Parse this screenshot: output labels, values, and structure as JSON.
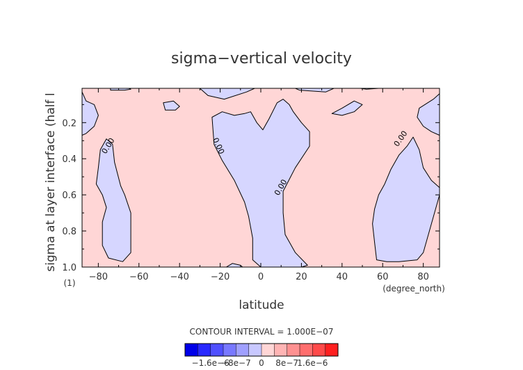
{
  "chart_data": {
    "type": "contour",
    "title": "sigma−vertical velocity",
    "xlabel": "latitude",
    "x_unit": "(degree_north)",
    "ylabel": "sigma at layer interface (half l",
    "y_unit": "(1)",
    "xlim": [
      -88,
      88
    ],
    "ylim": [
      1.0,
      0.01
    ],
    "x_ticks": [
      -80,
      -60,
      -40,
      -20,
      0,
      20,
      40,
      60,
      80
    ],
    "x_tick_labels": [
      "−80",
      "−60",
      "−40",
      "−20",
      "0",
      "20",
      "40",
      "60",
      "80"
    ],
    "y_ticks": [
      0.2,
      0.4,
      0.6,
      0.8,
      1.0
    ],
    "y_tick_labels": [
      "0.2",
      "0.4",
      "0.6",
      "0.8",
      "1.0"
    ],
    "contour_label": "0.00",
    "contour_interval_text": "CONTOUR INTERVAL = 1.000E−07",
    "colors": {
      "positive": "#ffd6d6",
      "negative": "#d6d6ff"
    },
    "colorbar": {
      "colors": [
        "#0000e8",
        "#2828ff",
        "#5050ff",
        "#7878ff",
        "#a0a0ff",
        "#c8c8ff",
        "#ffd6d6",
        "#ffb4b4",
        "#ff9191",
        "#ff6e6e",
        "#ff4a4a",
        "#ff2020"
      ],
      "tick_labels": [
        "−1.6e−6",
        "−8e−7",
        "0",
        "8e−7",
        "1.6e−6"
      ]
    },
    "negative_regions": [
      {
        "name": "south-polar-cell",
        "points": [
          [
            -88,
            0.03
          ],
          [
            -86,
            0.08
          ],
          [
            -82,
            0.1
          ],
          [
            -80,
            0.16
          ],
          [
            -82,
            0.22
          ],
          [
            -86,
            0.26
          ],
          [
            -88,
            0.27
          ]
        ]
      },
      {
        "name": "southern-column",
        "points": [
          [
            -79,
            0.35
          ],
          [
            -76,
            0.29
          ],
          [
            -73,
            0.32
          ],
          [
            -72,
            0.42
          ],
          [
            -69,
            0.55
          ],
          [
            -67,
            0.6
          ],
          [
            -64,
            0.7
          ],
          [
            -64,
            0.8
          ],
          [
            -64,
            0.92
          ],
          [
            -68,
            0.97
          ],
          [
            -75,
            0.95
          ],
          [
            -78,
            0.88
          ],
          [
            -78,
            0.75
          ],
          [
            -76,
            0.67
          ],
          [
            -78,
            0.6
          ],
          [
            -81,
            0.54
          ],
          [
            -80,
            0.45
          ]
        ]
      },
      {
        "name": "central-column",
        "points": [
          [
            -24,
            0.17
          ],
          [
            -19,
            0.14
          ],
          [
            -13,
            0.16
          ],
          [
            -8,
            0.15
          ],
          [
            -5,
            0.14
          ],
          [
            -2,
            0.2
          ],
          [
            1,
            0.24
          ],
          [
            4,
            0.18
          ],
          [
            8,
            0.09
          ],
          [
            11,
            0.07
          ],
          [
            14,
            0.1
          ],
          [
            16,
            0.14
          ],
          [
            20,
            0.2
          ],
          [
            24,
            0.25
          ],
          [
            24,
            0.33
          ],
          [
            17,
            0.45
          ],
          [
            11,
            0.58
          ],
          [
            11,
            0.7
          ],
          [
            12,
            0.82
          ],
          [
            17,
            0.92
          ],
          [
            23,
            0.99
          ],
          [
            20,
            1.0
          ],
          [
            0,
            1.0
          ],
          [
            -4,
            0.96
          ],
          [
            -4,
            0.84
          ],
          [
            -6,
            0.72
          ],
          [
            -8,
            0.64
          ],
          [
            -13,
            0.52
          ],
          [
            -19,
            0.41
          ],
          [
            -23,
            0.32
          ]
        ]
      },
      {
        "name": "equatorial-bottom-cell",
        "points": [
          [
            -17,
            1.0
          ],
          [
            -14,
            0.98
          ],
          [
            -10,
            0.99
          ],
          [
            -9,
            1.0
          ]
        ]
      },
      {
        "name": "northern-column",
        "points": [
          [
            57,
            0.96
          ],
          [
            56,
            0.86
          ],
          [
            55,
            0.76
          ],
          [
            56,
            0.68
          ],
          [
            58,
            0.6
          ],
          [
            61,
            0.54
          ],
          [
            64,
            0.46
          ],
          [
            68,
            0.38
          ],
          [
            72,
            0.33
          ],
          [
            75,
            0.28
          ],
          [
            78,
            0.35
          ],
          [
            80,
            0.45
          ],
          [
            84,
            0.52
          ],
          [
            88,
            0.56
          ],
          [
            88,
            0.6
          ],
          [
            83,
            0.8
          ],
          [
            80,
            0.92
          ],
          [
            77,
            0.96
          ],
          [
            68,
            0.97
          ],
          [
            62,
            0.97
          ]
        ]
      },
      {
        "name": "north-polar-cell",
        "points": [
          [
            88,
            0.04
          ],
          [
            85,
            0.07
          ],
          [
            78,
            0.12
          ],
          [
            77,
            0.17
          ],
          [
            80,
            0.22
          ],
          [
            84,
            0.25
          ],
          [
            88,
            0.27
          ]
        ]
      },
      {
        "name": "upper-left-cell",
        "points": [
          [
            -65,
            0.01
          ],
          [
            -64,
            0.015
          ],
          [
            -67,
            0.02
          ],
          [
            -74,
            0.02
          ],
          [
            -74,
            0.01
          ]
        ]
      },
      {
        "name": "upper-mid-cell",
        "points": [
          [
            -48,
            0.09
          ],
          [
            -43,
            0.08
          ],
          [
            -40,
            0.11
          ],
          [
            -42,
            0.13
          ],
          [
            -47,
            0.13
          ]
        ]
      },
      {
        "name": "upper-center-cell",
        "points": [
          [
            -30,
            0.01
          ],
          [
            -26,
            0.05
          ],
          [
            -18,
            0.07
          ],
          [
            -7,
            0.03
          ],
          [
            -3,
            0.01
          ]
        ]
      },
      {
        "name": "upper-right-cell",
        "points": [
          [
            17,
            0.01
          ],
          [
            19,
            0.02
          ],
          [
            32,
            0.03
          ],
          [
            36,
            0.01
          ]
        ]
      },
      {
        "name": "upper-right-small-cell",
        "points": [
          [
            35,
            0.15
          ],
          [
            40,
            0.12
          ],
          [
            46,
            0.08
          ],
          [
            50,
            0.1
          ],
          [
            46,
            0.14
          ],
          [
            40,
            0.16
          ]
        ]
      },
      {
        "name": "upper-far-right-cell",
        "points": [
          [
            49,
            0.01
          ],
          [
            52,
            0.015
          ],
          [
            58,
            0.01
          ]
        ]
      }
    ],
    "contour_labels": [
      {
        "lat": -75,
        "sigma": 0.33,
        "angle": -58
      },
      {
        "lat": -21,
        "sigma": 0.33,
        "angle": 65
      },
      {
        "lat": 10,
        "sigma": 0.56,
        "angle": -60
      },
      {
        "lat": 69,
        "sigma": 0.29,
        "angle": -55
      }
    ]
  }
}
